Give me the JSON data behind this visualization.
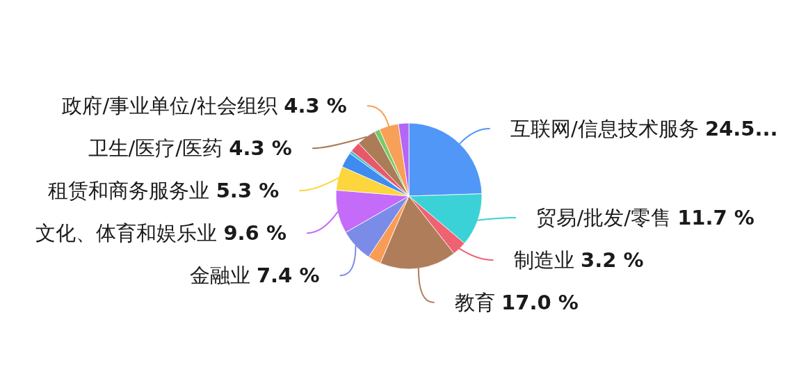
{
  "chart_data": {
    "type": "pie",
    "categories": [
      "互联网/信息技术服务",
      "贸易/批发/零售",
      "制造业",
      "教育",
      null,
      "金融业",
      "文化、体育和娱乐业",
      "租赁和商务服务业",
      null,
      null,
      null,
      "卫生/医疗/医药",
      null,
      "政府/事业单位/社会组织",
      null
    ],
    "values": [
      24.5,
      11.7,
      3.2,
      17.0,
      2.9,
      7.4,
      9.6,
      5.3,
      3.4,
      0.6,
      2.3,
      4.3,
      1.2,
      4.3,
      2.3
    ],
    "value_labels": [
      "24.5...",
      "11.7 %",
      "3.2 %",
      "17.0 %",
      null,
      "7.4 %",
      "9.6 %",
      "5.3 %",
      null,
      null,
      null,
      "4.3 %",
      null,
      "4.3 %",
      null
    ],
    "colors": [
      "#5097f7",
      "#3ad2d6",
      "#ef6272",
      "#b07d5b",
      "#f99c55",
      "#7b8ce8",
      "#c46bfa",
      "#fdd53c",
      "#3f8bef",
      "#35c5d5",
      "#e9576a",
      "#ac7b57",
      "#76cc66",
      "#f89f58",
      "#b466f5"
    ]
  }
}
